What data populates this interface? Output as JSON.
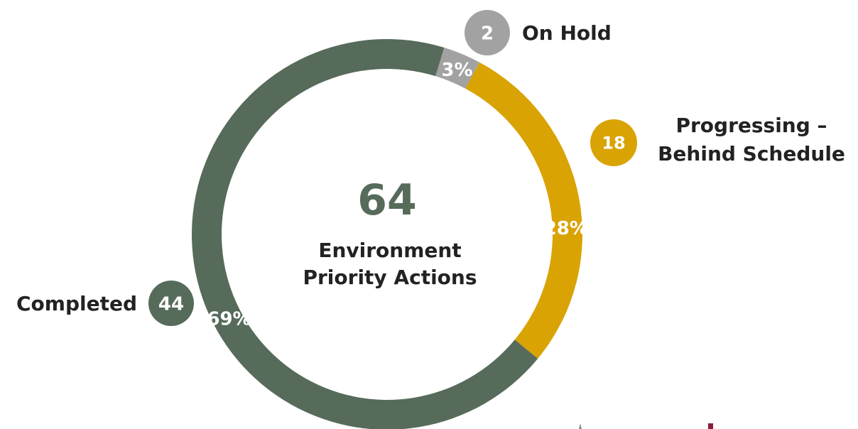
{
  "chart_data": {
    "type": "pie",
    "center": {
      "total": "64",
      "caption_lines": [
        "Environment",
        "Priority Actions"
      ]
    },
    "slices": [
      {
        "label": "Completed",
        "label_lines": [
          "Completed"
        ],
        "count": 44,
        "percent_label": "69%",
        "color": "#566b5a"
      },
      {
        "label": "On Hold",
        "label_lines": [
          "On Hold"
        ],
        "count": 2,
        "percent_label": "3%",
        "color": "#a2a2a2"
      },
      {
        "label": "Progressing – Behind Schedule",
        "label_lines": [
          "Progressing –",
          "Behind Schedule"
        ],
        "count": 18,
        "percent_label": "28%",
        "color": "#d9a304"
      }
    ]
  }
}
